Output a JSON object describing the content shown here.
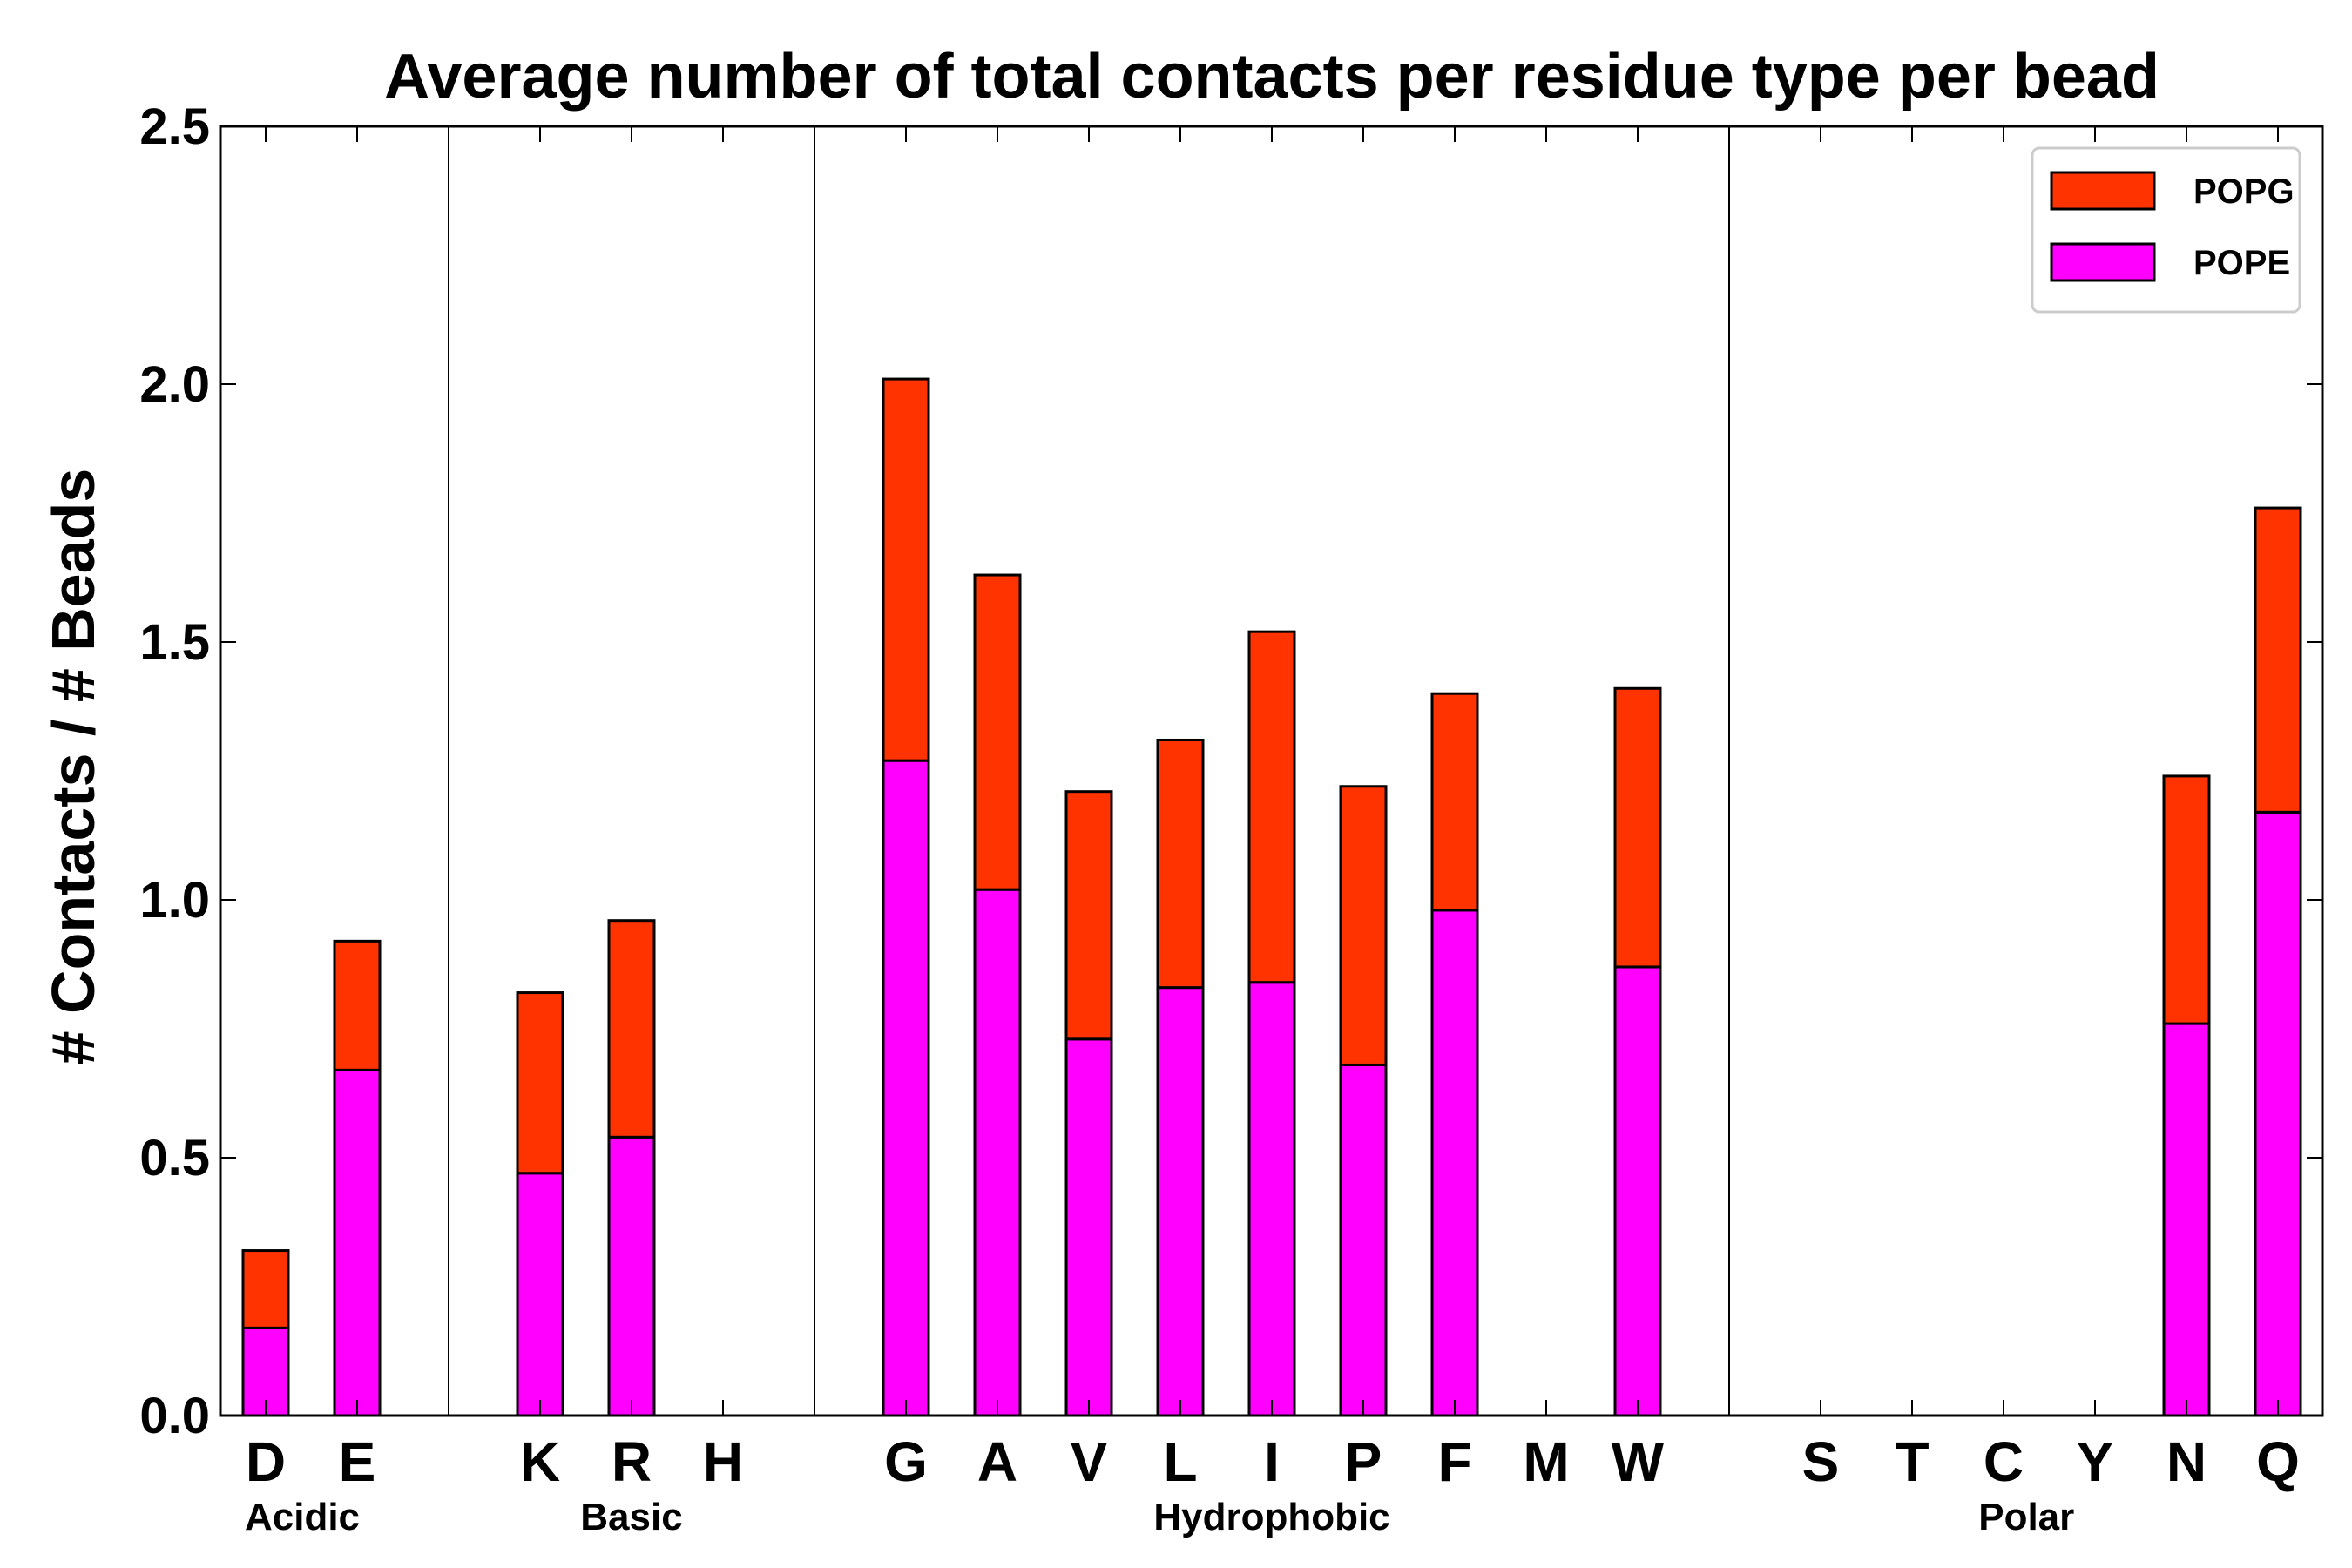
{
  "chart_data": {
    "type": "bar",
    "stacked": true,
    "title": "Average number of total contacts per residue type per bead",
    "xlabel": "",
    "ylabel": "# Contacts / # Beads",
    "ylim": [
      0,
      2.5
    ],
    "yticks": [
      "0.0",
      "0.5",
      "1.0",
      "1.5",
      "2.0",
      "2.5"
    ],
    "categories": [
      "D",
      "E",
      "",
      "K",
      "R",
      "H",
      "",
      "G",
      "A",
      "V",
      "L",
      "I",
      "P",
      "F",
      "M",
      "W",
      "",
      "S",
      "T",
      "C",
      "Y",
      "N",
      "Q"
    ],
    "series": [
      {
        "name": "POPE",
        "color": "#ff00ff",
        "values": [
          0.17,
          0.67,
          0,
          0.47,
          0.54,
          0,
          0,
          1.27,
          1.02,
          0.73,
          0.83,
          0.84,
          0.68,
          0.98,
          0,
          0.87,
          0,
          0,
          0,
          0,
          0,
          0.76,
          1.17
        ]
      },
      {
        "name": "POPG",
        "color": "#ff3300",
        "values": [
          0.15,
          0.25,
          0,
          0.35,
          0.42,
          0,
          0,
          0.74,
          0.61,
          0.48,
          0.48,
          0.68,
          0.54,
          0.42,
          0,
          0.54,
          0,
          0,
          0,
          0,
          0,
          0.48,
          0.59
        ]
      }
    ],
    "groups": [
      {
        "label": "Acidic",
        "center_index": 0.4
      },
      {
        "label": "Basic",
        "center_index": 4.0
      },
      {
        "label": "Hydrophobic",
        "center_index": 11.0
      },
      {
        "label": "Polar",
        "center_index": 19.25
      }
    ],
    "separators_after_index": [
      2,
      6,
      16
    ],
    "legend": {
      "position": "top-right",
      "entries": [
        "POPG",
        "POPE"
      ]
    }
  }
}
